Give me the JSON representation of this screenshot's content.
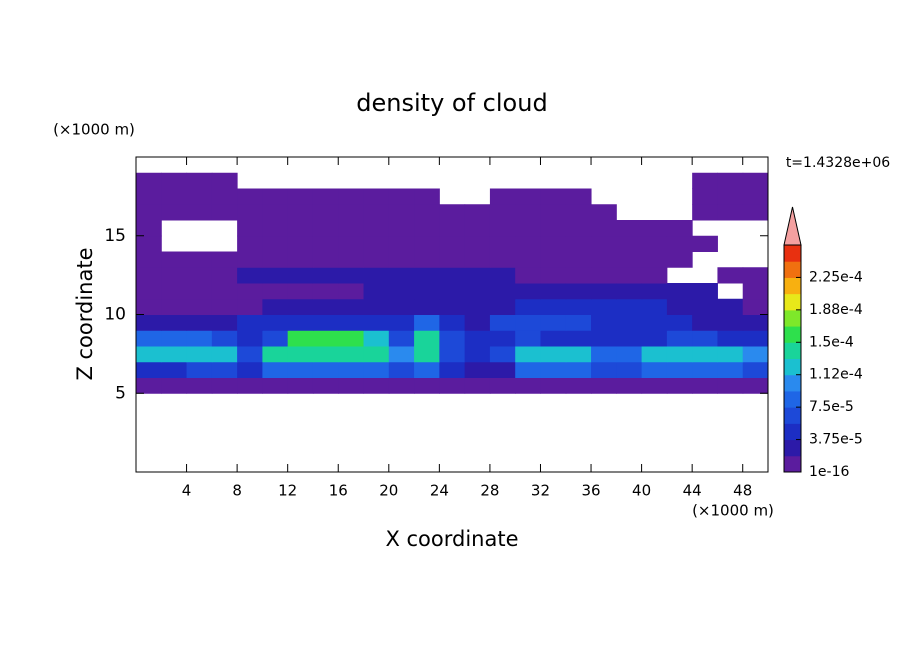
{
  "chart_data": {
    "type": "contour",
    "title": "density of cloud",
    "xlabel": "X coordinate",
    "ylabel": "Z coordinate",
    "xunit": "(×1000 m)",
    "yunit": "(×1000 m)",
    "annotation": "t=1.4328e+06",
    "xlim": [
      0,
      50
    ],
    "ylim": [
      0,
      20
    ],
    "xticks": [
      4,
      8,
      12,
      16,
      20,
      24,
      28,
      32,
      36,
      40,
      44,
      48
    ],
    "yticks": [
      5,
      10,
      15
    ],
    "x": [
      1,
      3,
      5,
      7,
      9,
      11,
      13,
      15,
      17,
      19,
      21,
      23,
      25,
      27,
      29,
      31,
      33,
      35,
      37,
      39,
      41,
      43,
      45,
      47,
      49
    ],
    "y": [
      5.5,
      6.5,
      7.5,
      8.5,
      9.5,
      10.5,
      11.5,
      12.5,
      13.5,
      14.5,
      15.5,
      16.5,
      17.5,
      18.5
    ],
    "z": [
      [
        1e-05,
        1e-05,
        1e-05,
        1e-05,
        1e-05,
        1e-05,
        1e-05,
        1e-05,
        1e-05,
        1e-05,
        1e-05,
        1e-05,
        1e-05,
        1e-05,
        1e-05,
        1e-05,
        1e-05,
        1e-05,
        1e-05,
        1e-05,
        1e-05,
        1e-05,
        1e-05,
        1e-05,
        1e-05
      ],
      [
        4.5e-05,
        4.5e-05,
        6.5e-05,
        6.5e-05,
        4.5e-05,
        8.5e-05,
        8.5e-05,
        8.5e-05,
        8.5e-05,
        8.5e-05,
        6.5e-05,
        8.5e-05,
        4.5e-05,
        2.5e-05,
        2.5e-05,
        8.5e-05,
        8.5e-05,
        8.5e-05,
        6.5e-05,
        6.5e-05,
        8.5e-05,
        8.5e-05,
        8.5e-05,
        8.5e-05,
        6.5e-05
      ],
      [
        0.00012,
        0.00012,
        0.00012,
        0.00012,
        6.5e-05,
        0.00014,
        0.00014,
        0.00014,
        0.00014,
        0.00014,
        0.0001,
        0.00014,
        6.5e-05,
        4.5e-05,
        6.5e-05,
        0.00012,
        0.00012,
        0.00012,
        8.5e-05,
        8.5e-05,
        0.00012,
        0.00012,
        0.00012,
        0.00012,
        0.0001
      ],
      [
        8.5e-05,
        8.5e-05,
        8.5e-05,
        6.5e-05,
        4.5e-05,
        6.5e-05,
        0.00016,
        0.00016,
        0.00016,
        0.00012,
        6.5e-05,
        0.00014,
        6.5e-05,
        4.5e-05,
        4.5e-05,
        6.5e-05,
        4.5e-05,
        4.5e-05,
        4.5e-05,
        4.5e-05,
        4.5e-05,
        6.5e-05,
        6.5e-05,
        4.5e-05,
        4.5e-05
      ],
      [
        2.5e-05,
        2.5e-05,
        2.5e-05,
        2.5e-05,
        4.5e-05,
        4.5e-05,
        4.5e-05,
        4.5e-05,
        4.5e-05,
        4.5e-05,
        4.5e-05,
        8.5e-05,
        4.5e-05,
        2.5e-05,
        6.5e-05,
        6.5e-05,
        6.5e-05,
        6.5e-05,
        4.5e-05,
        4.5e-05,
        4.5e-05,
        4.5e-05,
        2.5e-05,
        2.5e-05,
        2.5e-05
      ],
      [
        1e-05,
        1e-05,
        1e-05,
        1e-05,
        1e-05,
        2.5e-05,
        2.5e-05,
        2.5e-05,
        2.5e-05,
        2.5e-05,
        2.5e-05,
        2.5e-05,
        2.5e-05,
        2.5e-05,
        2.5e-05,
        4.5e-05,
        4.5e-05,
        4.5e-05,
        4.5e-05,
        4.5e-05,
        4.5e-05,
        2.5e-05,
        2.5e-05,
        2.5e-05,
        1e-05
      ],
      [
        1e-05,
        1e-05,
        1e-05,
        1e-05,
        1e-05,
        1e-05,
        1e-05,
        1e-05,
        1e-05,
        2.5e-05,
        2.5e-05,
        2.5e-05,
        2.5e-05,
        2.5e-05,
        2.5e-05,
        2.5e-05,
        2.5e-05,
        2.5e-05,
        2.5e-05,
        2.5e-05,
        2.5e-05,
        2.5e-05,
        2.5e-05,
        null,
        1e-05
      ],
      [
        1e-05,
        1e-05,
        1e-05,
        1e-05,
        2.5e-05,
        2.5e-05,
        2.5e-05,
        2.5e-05,
        2.5e-05,
        2.5e-05,
        2.5e-05,
        2.5e-05,
        2.5e-05,
        2.5e-05,
        2.5e-05,
        1e-05,
        1e-05,
        1e-05,
        1e-05,
        1e-05,
        1e-05,
        null,
        null,
        1e-05,
        1e-05
      ],
      [
        1e-05,
        1e-05,
        1e-05,
        1e-05,
        1e-05,
        1e-05,
        1e-05,
        1e-05,
        1e-05,
        1e-05,
        1e-05,
        1e-05,
        1e-05,
        1e-05,
        1e-05,
        1e-05,
        1e-05,
        1e-05,
        1e-05,
        1e-05,
        1e-05,
        1e-05,
        null,
        null,
        null
      ],
      [
        1e-05,
        null,
        null,
        null,
        1e-05,
        1e-05,
        1e-05,
        1e-05,
        1e-05,
        1e-05,
        1e-05,
        1e-05,
        1e-05,
        1e-05,
        1e-05,
        1e-05,
        1e-05,
        1e-05,
        1e-05,
        1e-05,
        1e-05,
        1e-05,
        1e-05,
        null,
        null
      ],
      [
        1e-05,
        null,
        null,
        null,
        1e-05,
        1e-05,
        1e-05,
        1e-05,
        1e-05,
        1e-05,
        1e-05,
        1e-05,
        1e-05,
        1e-05,
        1e-05,
        1e-05,
        1e-05,
        1e-05,
        1e-05,
        1e-05,
        1e-05,
        1e-05,
        null,
        null,
        null
      ],
      [
        1e-05,
        1e-05,
        1e-05,
        1e-05,
        1e-05,
        1e-05,
        1e-05,
        1e-05,
        1e-05,
        1e-05,
        1e-05,
        1e-05,
        1e-05,
        1e-05,
        1e-05,
        1e-05,
        1e-05,
        1e-05,
        1e-05,
        null,
        null,
        null,
        1e-05,
        1e-05,
        1e-05
      ],
      [
        1e-05,
        1e-05,
        1e-05,
        1e-05,
        1e-05,
        1e-05,
        1e-05,
        1e-05,
        1e-05,
        1e-05,
        1e-05,
        1e-05,
        null,
        null,
        1e-05,
        1e-05,
        1e-05,
        1e-05,
        null,
        null,
        null,
        null,
        1e-05,
        1e-05,
        1e-05
      ],
      [
        1e-05,
        1e-05,
        1e-05,
        1e-05,
        null,
        null,
        null,
        null,
        null,
        null,
        null,
        null,
        null,
        null,
        null,
        null,
        null,
        null,
        null,
        null,
        null,
        null,
        1e-05,
        1e-05,
        1e-05
      ]
    ],
    "levels": [
      1e-16,
      1.875e-05,
      3.75e-05,
      5.625e-05,
      7.5e-05,
      9.375e-05,
      0.0001125,
      0.00013125,
      0.00015,
      0.00016875,
      0.0001875,
      0.00020625,
      0.000225,
      0.00024375,
      0.0002625
    ],
    "colors": [
      "#5b1c9e",
      "#2c1aa8",
      "#1c2ec4",
      "#1d49d8",
      "#1f66e6",
      "#2a8aee",
      "#1bc0d0",
      "#19d49a",
      "#2ee04c",
      "#7ee82a",
      "#e8e81a",
      "#f8b010",
      "#f07010",
      "#e83010"
    ],
    "over_color": "#f4a0a0",
    "colorbar_ticks": [
      1e-16,
      {
        "value": 3.75e-05,
        "label": "3.75e-5"
      },
      {
        "value": 7.5e-05,
        "label": "7.5e-5"
      },
      {
        "value": 0.0001125,
        "label": "1.12e-4"
      },
      {
        "value": 0.00015,
        "label": "1.5e-4"
      },
      {
        "value": 0.0001875,
        "label": "1.88e-4"
      },
      {
        "value": 0.000225,
        "label": "2.25e-4"
      }
    ]
  }
}
